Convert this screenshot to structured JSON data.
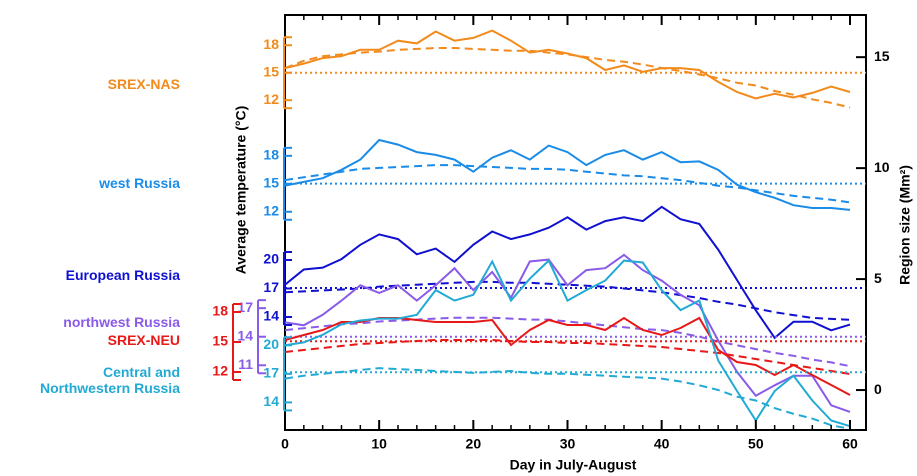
{
  "chart_data": {
    "type": "line",
    "x_label": "Day in July-August",
    "y_label": "Average temperature (°C)",
    "y2_label": "Region size (Mm²)",
    "x": [
      0,
      2,
      4,
      6,
      8,
      10,
      12,
      14,
      16,
      18,
      20,
      22,
      24,
      26,
      28,
      30,
      32,
      34,
      36,
      38,
      40,
      42,
      44,
      46,
      48,
      50,
      52,
      54,
      56,
      58,
      60
    ],
    "xlim": [
      0,
      61.7
    ],
    "xticks": [
      0,
      10,
      20,
      30,
      40,
      50,
      60
    ],
    "y2lim": [
      -1.8,
      16.9
    ],
    "y2ticks": [
      0,
      5,
      10,
      15
    ],
    "series": [
      {
        "name": "SREX-NAS",
        "color": "#f28a1c",
        "ylim": [
          -24.0,
          21.3
        ],
        "yticks": [
          12,
          15,
          18
        ],
        "region_size": 14.3,
        "values": [
          15.5,
          16.0,
          16.6,
          16.8,
          17.5,
          17.5,
          18.5,
          18.2,
          19.5,
          18.5,
          18.8,
          19.6,
          18.5,
          17.2,
          17.5,
          17.1,
          16.6,
          15.3,
          15.8,
          15.1,
          15.5,
          15.5,
          15.3,
          14.0,
          12.9,
          12.2,
          12.7,
          12.3,
          12.8,
          13.5,
          12.9
        ],
        "climatology": [
          15.5,
          16.3,
          16.8,
          17.0,
          17.2,
          17.3,
          17.5,
          17.6,
          17.7,
          17.7,
          17.6,
          17.5,
          17.4,
          17.4,
          17.2,
          17.0,
          16.7,
          16.4,
          16.2,
          15.9,
          15.5,
          15.2,
          14.8,
          14.4,
          13.9,
          13.6,
          13.0,
          12.6,
          12.1,
          11.7,
          11.2
        ]
      },
      {
        "name": "west Russia",
        "color": "#1a8ce8",
        "ylim": [
          -11.4,
          33.1
        ],
        "yticks": [
          12,
          15,
          18
        ],
        "region_size": 9.3,
        "values": [
          14.8,
          15.2,
          15.6,
          16.5,
          17.6,
          19.7,
          19.2,
          18.4,
          18.1,
          17.6,
          16.3,
          17.8,
          18.6,
          17.6,
          19.1,
          18.4,
          17.0,
          18.1,
          18.6,
          17.6,
          18.4,
          17.3,
          17.4,
          16.5,
          14.9,
          14.1,
          13.5,
          12.7,
          12.4,
          12.4,
          12.2
        ],
        "climatology": [
          15.4,
          15.7,
          16.0,
          16.3,
          16.6,
          16.7,
          16.8,
          16.9,
          17.0,
          17.0,
          16.9,
          16.8,
          16.7,
          16.6,
          16.6,
          16.5,
          16.3,
          16.1,
          15.9,
          15.8,
          15.6,
          15.4,
          15.1,
          14.8,
          14.6,
          14.3,
          14.0,
          13.7,
          13.5,
          13.3,
          13.0
        ]
      },
      {
        "name": "European Russia",
        "color": "#1010d0",
        "ylim": [
          2.1,
          45.8
        ],
        "yticks": [
          14,
          17,
          20
        ],
        "region_size": 4.6,
        "values": [
          17.4,
          19.0,
          19.2,
          20.1,
          21.6,
          22.7,
          22.2,
          20.6,
          21.2,
          19.8,
          21.6,
          23.0,
          22.2,
          22.7,
          23.4,
          24.5,
          23.2,
          24.1,
          24.5,
          24.1,
          25.6,
          24.3,
          23.8,
          21.1,
          17.9,
          14.7,
          11.8,
          13.5,
          13.5,
          12.6,
          13.2
        ],
        "climatology": [
          16.6,
          16.7,
          16.8,
          16.9,
          17.0,
          17.2,
          17.3,
          17.4,
          17.5,
          17.6,
          17.7,
          17.7,
          17.6,
          17.6,
          17.5,
          17.4,
          17.3,
          17.2,
          17.0,
          16.8,
          16.6,
          16.3,
          16.0,
          15.6,
          15.3,
          14.9,
          14.5,
          14.2,
          13.9,
          13.8,
          13.7
        ]
      },
      {
        "name": "northwest Russia",
        "color": "#8a5ae8",
        "ylim": [
          4.2,
          47.8
        ],
        "yticks": [
          11,
          14,
          17
        ],
        "region_size": 2.4,
        "values": [
          15.5,
          15.2,
          16.3,
          17.8,
          19.4,
          18.6,
          19.4,
          17.8,
          19.4,
          21.2,
          18.9,
          20.8,
          18.1,
          21.9,
          22.1,
          19.4,
          21.0,
          21.2,
          22.6,
          21.0,
          19.9,
          18.4,
          17.3,
          13.6,
          10.3,
          7.8,
          8.9,
          9.9,
          9.9,
          6.8,
          6.1
        ],
        "climatology": [
          14.7,
          14.9,
          15.1,
          15.3,
          15.4,
          15.6,
          15.7,
          15.8,
          15.9,
          16.0,
          16.0,
          16.0,
          15.9,
          15.8,
          15.8,
          15.6,
          15.4,
          15.2,
          15.0,
          14.8,
          14.7,
          14.4,
          14.0,
          13.5,
          13.1,
          12.7,
          12.3,
          12.0,
          11.6,
          11.3,
          10.9
        ]
      },
      {
        "name": "SREX-NEU",
        "color": "#e81818",
        "ylim": [
          6.2,
          47.7
        ],
        "yticks": [
          12,
          15,
          18
        ],
        "region_size": 2.2,
        "values": [
          15.2,
          15.7,
          16.2,
          17.0,
          17.0,
          17.4,
          17.4,
          17.2,
          17.0,
          17.0,
          17.0,
          17.2,
          14.7,
          16.2,
          17.2,
          16.7,
          16.7,
          16.2,
          17.4,
          16.2,
          15.7,
          16.4,
          17.4,
          14.2,
          13.0,
          12.7,
          11.7,
          12.7,
          11.7,
          10.7,
          9.7
        ],
        "climatology": [
          14.0,
          14.2,
          14.4,
          14.6,
          14.8,
          14.9,
          15.0,
          15.1,
          15.2,
          15.2,
          15.2,
          15.2,
          15.1,
          15.0,
          15.0,
          14.9,
          14.9,
          14.8,
          14.7,
          14.6,
          14.5,
          14.3,
          14.1,
          13.9,
          13.6,
          13.3,
          13.0,
          12.7,
          12.4,
          12.1,
          11.8
        ]
      },
      {
        "name": "Central and Northwestern Russia",
        "color": "#22aad4",
        "ylim": [
          11.1,
          54.7
        ],
        "yticks": [
          14,
          17,
          20
        ],
        "region_size": 0.8,
        "values": [
          20.0,
          20.3,
          21.1,
          22.2,
          22.6,
          22.8,
          22.8,
          23.2,
          25.8,
          24.7,
          25.3,
          28.8,
          24.7,
          27.0,
          28.9,
          24.7,
          25.8,
          26.8,
          28.9,
          28.7,
          25.8,
          23.7,
          24.7,
          18.4,
          15.2,
          12.1,
          15.2,
          16.8,
          14.2,
          12.1,
          11.5
        ],
        "climatology": [
          16.5,
          16.8,
          17.0,
          17.2,
          17.4,
          17.6,
          17.5,
          17.4,
          17.3,
          17.2,
          17.1,
          17.2,
          17.3,
          17.1,
          17.0,
          17.0,
          16.9,
          16.8,
          16.7,
          16.6,
          16.5,
          16.2,
          15.8,
          15.3,
          14.6,
          14.2,
          13.4,
          12.8,
          12.3,
          11.6,
          11.2
        ]
      }
    ]
  }
}
